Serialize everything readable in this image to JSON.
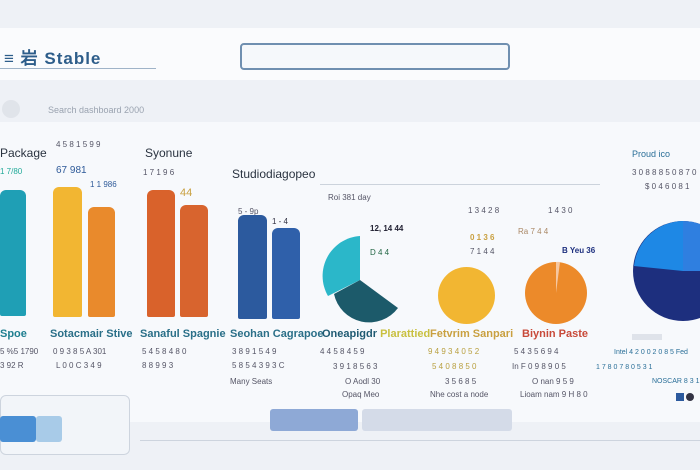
{
  "header": {
    "logo": "≡ 岩 Stable",
    "search_placeholder": ""
  },
  "subtitle": "Search dashboard 2000",
  "panels": [
    {
      "title": "Package",
      "value": "1 7/80",
      "name": "Spoe",
      "lines": [
        "5 %5 1790",
        "3 92 R"
      ],
      "color": "#1f9fb5"
    },
    {
      "title": "4 5 8 1 5 9 9",
      "value": "67 981",
      "value2": "1 1 986",
      "name": "Sotacmair Stive",
      "lines": [
        "0 9 3 8 5 A 301",
        "L 0 0 C 3 4 9"
      ],
      "colors": [
        "#f2b632",
        "#e98a2c"
      ]
    },
    {
      "title": "Syonune",
      "value": "1 7 1 9 6",
      "value2": "44",
      "name": "Sanaful Spagnie",
      "lines": [
        "5 4 5 8 4 8 0",
        "8 8 9 9 3"
      ],
      "colors": [
        "#d9622b",
        "#d8642e"
      ]
    },
    {
      "title": "Studiodiagopeo",
      "value": "5 - 9p",
      "value2": "1 - 4",
      "name": "Seohan Cagrapoe",
      "lines": [
        "3 8 9 1 5 4 9",
        "5 8 5 4 3 9 3 C"
      ],
      "footer": "Many Seats",
      "colors": [
        "#2c5a9e",
        "#2f60aa"
      ]
    },
    {
      "title": "Roi 381 day",
      "value": "12, 14 44",
      "value2": "D 4 4",
      "name": "Oneapigdr",
      "name2": "Plarattied",
      "lines": [
        "4 4 5 8 4 5 9",
        "3 9 1 8 5 6 3",
        "O Aodl 30",
        "Opaq Meo"
      ],
      "colors": [
        "#2bb7c9",
        "#1c5a6a"
      ]
    },
    {
      "title": "1 3 4 2 8",
      "value": "0 1 3 6",
      "value2": "7 1 4 4",
      "name": "Fetvrim Sanpari",
      "lines": [
        "9 4 9 3 4 0 5 2",
        "5 4 0 8 8 5 0",
        "3 5 6 8 5",
        "Nhe cost a node"
      ],
      "color": "#f2b632"
    },
    {
      "title": "1 4 3 0",
      "value": "Ra 7 4 4",
      "value2": "B Yeu 36",
      "name": "Biynin Paste",
      "lines": [
        "5 4 3 5 6 9 4",
        "In F 0 9 8 9 0 5",
        "O nan 9 5 9",
        "Lioam nam 9 H 8 0"
      ],
      "color": "#ec8a2a"
    },
    {
      "title": "Proud ico",
      "value": "3 0 8 8 8 5 0 8 7 0",
      "value2": "$ 0 4 6 0 8 1",
      "lines": [
        "Intel 4 2 0 0 2 0 8 5 Fed",
        "1 7 8 0 7 8 0 5 3 1",
        "NOSCAR 8 3 1"
      ],
      "colors": [
        "#1e88e5",
        "#1d2f7e"
      ]
    }
  ],
  "footer": {
    "left_button": "",
    "center_button": "",
    "right_button": ""
  }
}
